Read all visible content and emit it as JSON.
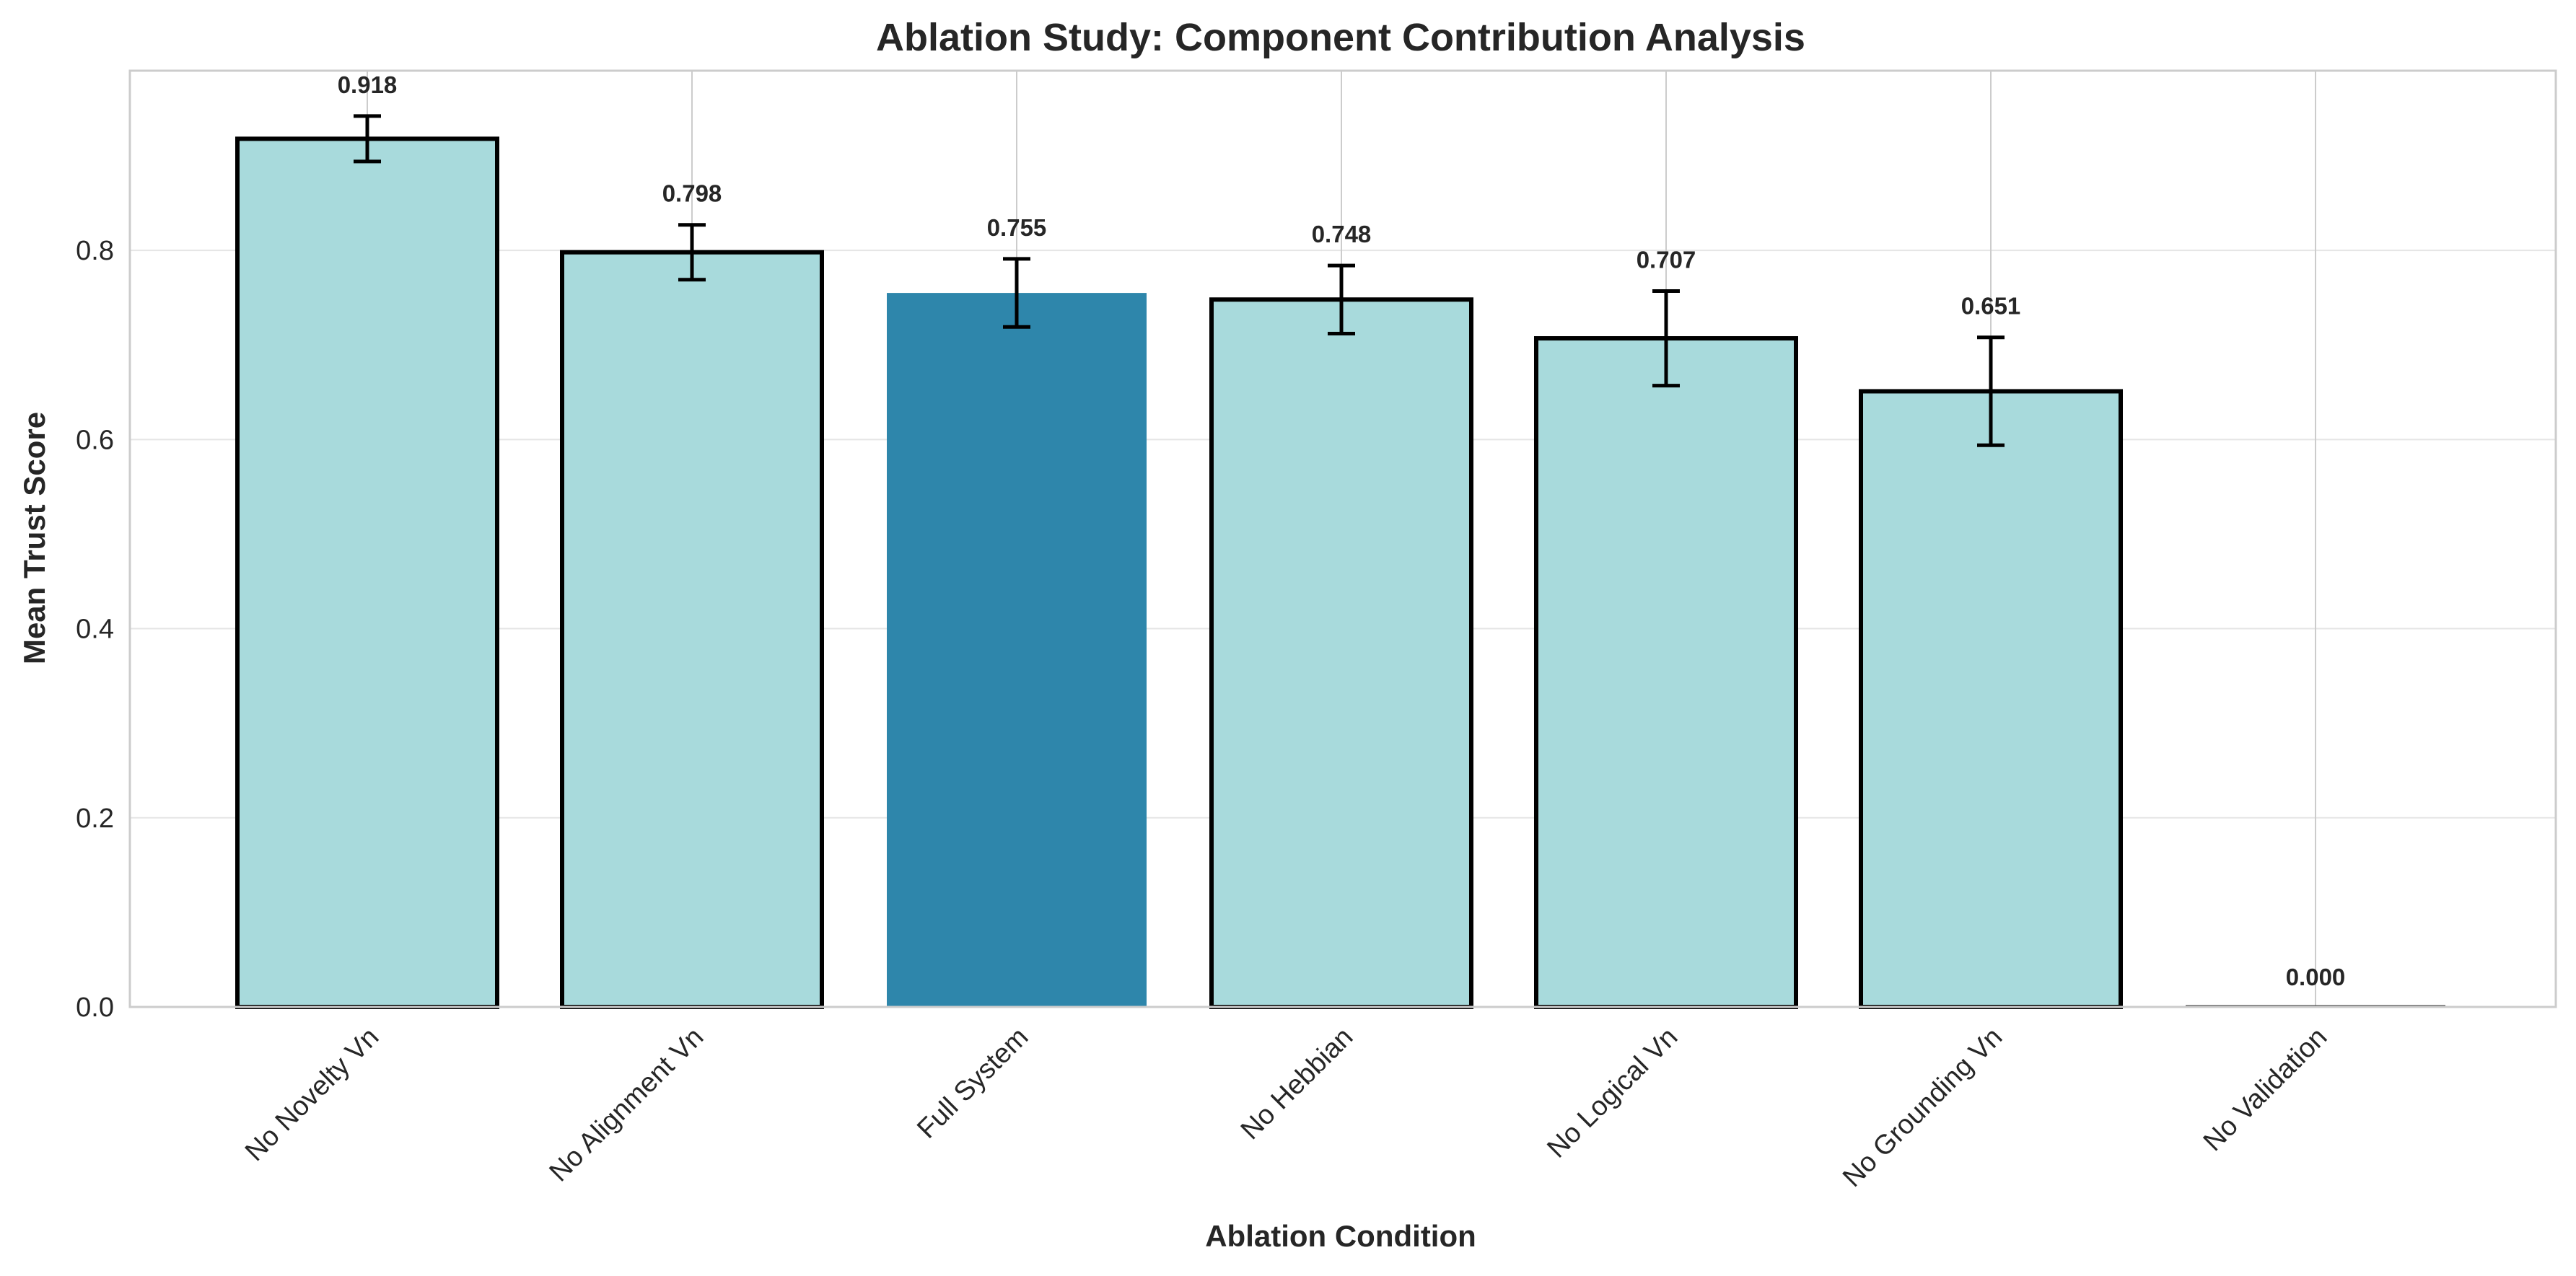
{
  "chart_data": {
    "type": "bar",
    "title": "Ablation Study: Component Contribution Analysis",
    "xlabel": "Ablation Condition",
    "ylabel": "Mean Trust Score",
    "categories": [
      "No Novelty Vn",
      "No Alignment Vn",
      "Full System",
      "No Hebbian",
      "No Logical Vn",
      "No Grounding Vn",
      "No Validation"
    ],
    "values": [
      0.918,
      0.798,
      0.755,
      0.748,
      0.707,
      0.651,
      0.0
    ],
    "value_labels": [
      "0.918",
      "0.798",
      "0.755",
      "0.748",
      "0.707",
      "0.651",
      "0.000"
    ],
    "errors": [
      0.024,
      0.029,
      0.036,
      0.036,
      0.05,
      0.057,
      0.0
    ],
    "highlight_category": "Full System",
    "ylim": [
      0.0,
      0.99
    ],
    "yticks": [
      0.0,
      0.2,
      0.4,
      0.6,
      0.8
    ],
    "ytick_labels": [
      "0.0",
      "0.2",
      "0.4",
      "0.6",
      "0.8"
    ],
    "grid": true,
    "colors": {
      "bar": "#a8dadc",
      "highlight": "#2e86ab",
      "edge": "#000000",
      "error_bar": "#000000",
      "grid": "#e5e5e5",
      "vgrid": "#cccccc",
      "spine": "#cccccc",
      "text": "#262626"
    }
  }
}
